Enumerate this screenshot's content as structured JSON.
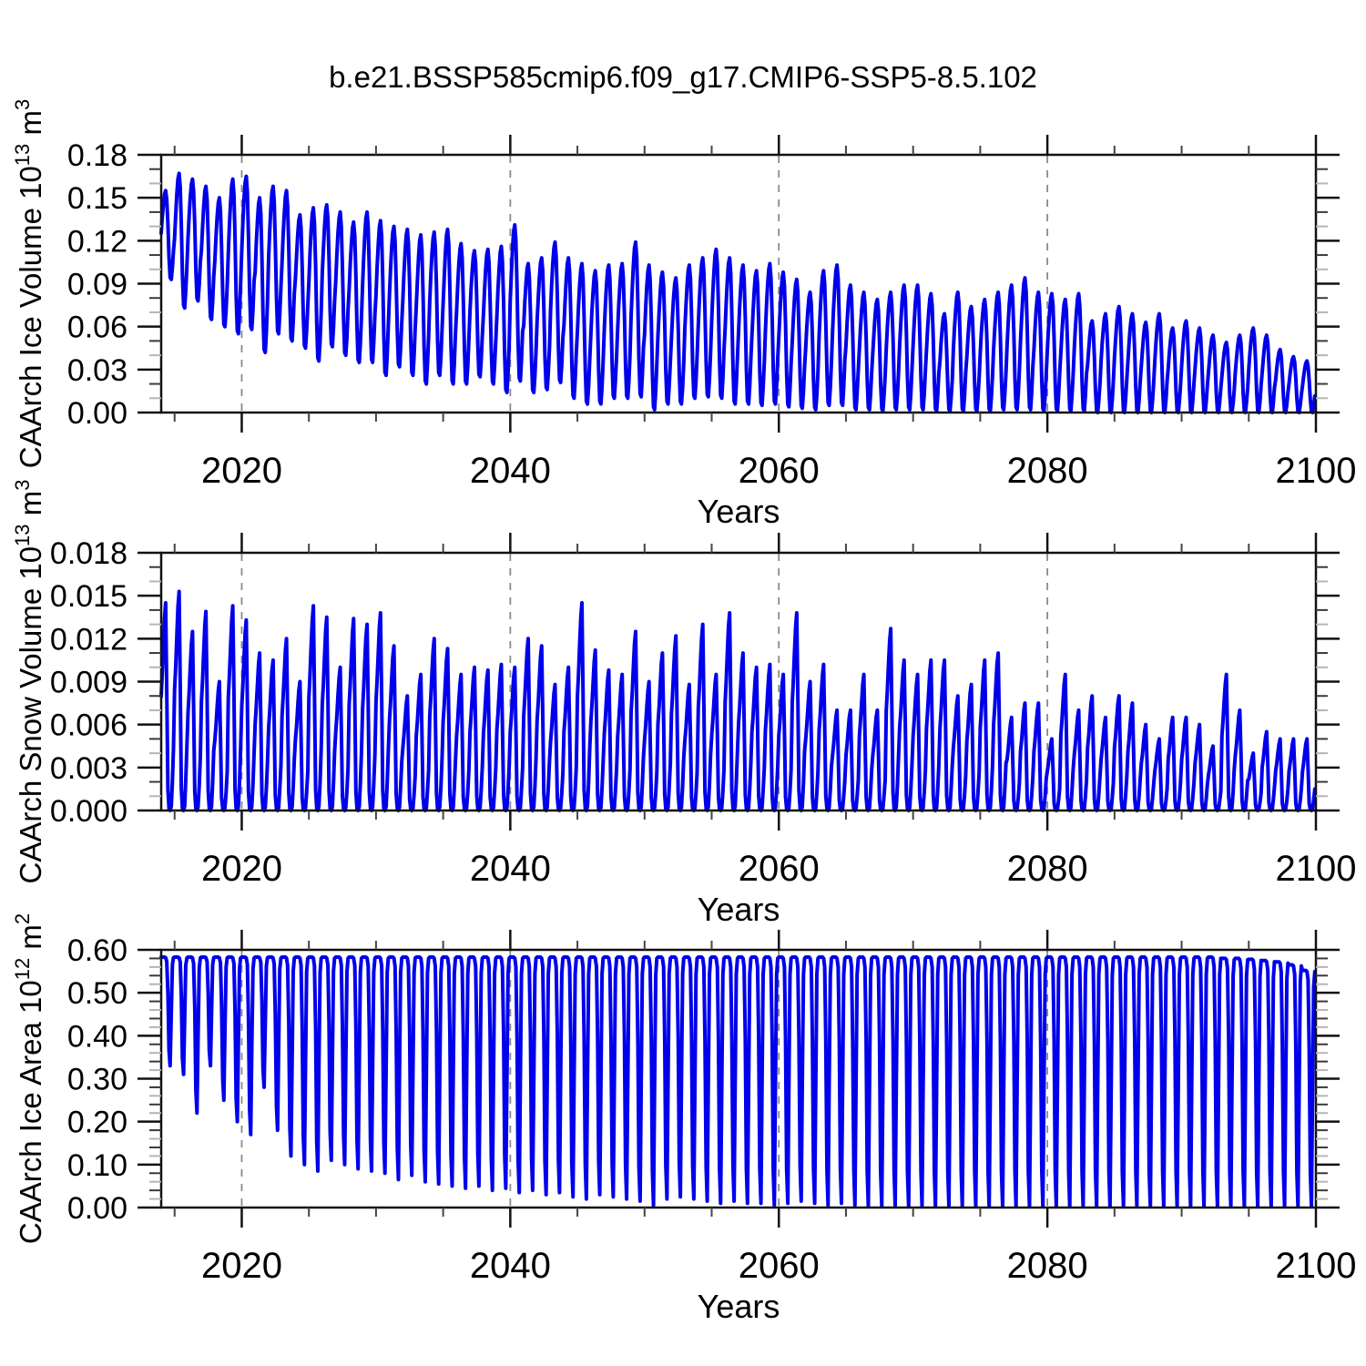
{
  "title": "b.e21.BSSP585cmip6.f09_g17.CMIP6-SSP5-8.5.102",
  "xlabel": "Years",
  "colors": {
    "line": "#0000EB",
    "frame": "#111111",
    "grid_dash": "#8a8a8a",
    "minor_tick_dark": "#3a3a3a",
    "minor_tick_light": "#b5b5b5",
    "x_minor_tick": "#444444",
    "text": "#000000"
  },
  "chart_data": [
    {
      "type": "line",
      "ylabel_parts": {
        "pre": "CAArch Ice Volume 10",
        "sup1": "13",
        "mid": " m",
        "sup2": "3"
      },
      "ylim": [
        0,
        0.18
      ],
      "ytick_values": [
        0,
        0.03,
        0.06,
        0.09,
        0.12,
        0.15,
        0.18
      ],
      "ytick_labels": [
        "0.00",
        "0.03",
        "0.06",
        "0.09",
        "0.12",
        "0.15",
        "0.18"
      ],
      "y_minor_step": 0.01,
      "xlim": [
        2014,
        2100
      ],
      "xtick_values": [
        2020,
        2040,
        2060,
        2080,
        2100
      ],
      "xtick_labels": [
        "2020",
        "2040",
        "2060",
        "2080",
        "2100"
      ],
      "x_minor_step": 5,
      "grid_years": [
        2020,
        2040,
        2060,
        2080
      ],
      "start_year": 2014,
      "mode": "envelope",
      "seasonal_shape": [
        0.52,
        0.7,
        0.85,
        0.96,
        1.0,
        0.9,
        0.62,
        0.25,
        0.02,
        0.0,
        0.13,
        0.32
      ],
      "annual_max": [
        0.155,
        0.167,
        0.163,
        0.158,
        0.15,
        0.163,
        0.165,
        0.15,
        0.158,
        0.155,
        0.138,
        0.143,
        0.145,
        0.14,
        0.133,
        0.14,
        0.134,
        0.13,
        0.128,
        0.124,
        0.126,
        0.128,
        0.118,
        0.113,
        0.114,
        0.116,
        0.131,
        0.104,
        0.108,
        0.119,
        0.108,
        0.104,
        0.099,
        0.103,
        0.104,
        0.119,
        0.103,
        0.098,
        0.094,
        0.103,
        0.108,
        0.114,
        0.108,
        0.103,
        0.099,
        0.104,
        0.098,
        0.093,
        0.084,
        0.099,
        0.103,
        0.089,
        0.084,
        0.079,
        0.084,
        0.089,
        0.089,
        0.083,
        0.069,
        0.084,
        0.074,
        0.079,
        0.084,
        0.089,
        0.094,
        0.084,
        0.083,
        0.079,
        0.083,
        0.064,
        0.069,
        0.074,
        0.069,
        0.063,
        0.069,
        0.059,
        0.064,
        0.059,
        0.054,
        0.049,
        0.054,
        0.059,
        0.054,
        0.044,
        0.039,
        0.036
      ],
      "annual_min": [
        0.093,
        0.073,
        0.078,
        0.065,
        0.06,
        0.055,
        0.058,
        0.042,
        0.055,
        0.05,
        0.045,
        0.036,
        0.046,
        0.04,
        0.035,
        0.035,
        0.026,
        0.032,
        0.026,
        0.02,
        0.026,
        0.02,
        0.02,
        0.025,
        0.02,
        0.014,
        0.022,
        0.014,
        0.016,
        0.021,
        0.01,
        0.006,
        0.006,
        0.01,
        0.01,
        0.011,
        0.002,
        0.006,
        0.006,
        0.01,
        0.011,
        0.01,
        0.006,
        0.006,
        0.005,
        0.006,
        0.004,
        0.003,
        0.002,
        0.005,
        0.005,
        0.002,
        0.002,
        0.001,
        0.002,
        0.002,
        0.002,
        0.001,
        0.001,
        0.001,
        0.001,
        0.001,
        0.002,
        0.002,
        0.002,
        0.001,
        0.001,
        0.001,
        0.001,
        0.0,
        0.0,
        0.0,
        0.0,
        0.0,
        0.0,
        0.0,
        0.0,
        0.0,
        0.0,
        0.0,
        0.0,
        0.0,
        0.0,
        0.0,
        0.0,
        0.0
      ]
    },
    {
      "type": "line",
      "ylabel_parts": {
        "pre": "CAArch Snow Volume 10",
        "sup1": "13",
        "mid": " m",
        "sup2": "3"
      },
      "ylim": [
        0,
        0.018
      ],
      "ytick_values": [
        0,
        0.003,
        0.006,
        0.009,
        0.012,
        0.015,
        0.018
      ],
      "ytick_labels": [
        "0.000",
        "0.003",
        "0.006",
        "0.009",
        "0.012",
        "0.015",
        "0.018"
      ],
      "y_minor_step": 0.001,
      "xlim": [
        2014,
        2100
      ],
      "xtick_values": [
        2020,
        2040,
        2060,
        2080,
        2100
      ],
      "xtick_labels": [
        "2020",
        "2040",
        "2060",
        "2080",
        "2100"
      ],
      "x_minor_step": 5,
      "grid_years": [
        2020,
        2040,
        2060,
        2080
      ],
      "start_year": 2014,
      "mode": "peak",
      "seasonal_shape": [
        0.55,
        0.66,
        0.8,
        0.93,
        1.0,
        0.58,
        0.1,
        0.01,
        0.0,
        0.02,
        0.14,
        0.3
      ],
      "annual_max": [
        0.0145,
        0.0153,
        0.0125,
        0.0139,
        0.009,
        0.0143,
        0.0133,
        0.011,
        0.0105,
        0.012,
        0.009,
        0.0143,
        0.0135,
        0.01,
        0.0134,
        0.013,
        0.0138,
        0.0115,
        0.008,
        0.0095,
        0.012,
        0.0113,
        0.0095,
        0.01,
        0.0098,
        0.0102,
        0.01,
        0.012,
        0.0115,
        0.0088,
        0.01,
        0.0145,
        0.0112,
        0.0098,
        0.0095,
        0.0125,
        0.009,
        0.011,
        0.0122,
        0.0088,
        0.013,
        0.0095,
        0.0138,
        0.011,
        0.01,
        0.0102,
        0.0095,
        0.0138,
        0.009,
        0.0102,
        0.007,
        0.007,
        0.0095,
        0.007,
        0.0127,
        0.0105,
        0.0095,
        0.0105,
        0.0105,
        0.008,
        0.0088,
        0.0105,
        0.011,
        0.0065,
        0.0075,
        0.0075,
        0.005,
        0.0095,
        0.007,
        0.008,
        0.0065,
        0.008,
        0.0075,
        0.006,
        0.005,
        0.0065,
        0.0065,
        0.006,
        0.0045,
        0.0095,
        0.007,
        0.004,
        0.0055,
        0.005,
        0.005,
        0.005
      ],
      "annual_min": [
        0,
        0,
        0,
        0,
        0,
        0,
        0,
        0,
        0,
        0,
        0,
        0,
        0,
        0,
        0,
        0,
        0,
        0,
        0,
        0,
        0,
        0,
        0,
        0,
        0,
        0,
        0,
        0,
        0,
        0,
        0,
        0,
        0,
        0,
        0,
        0,
        0,
        0,
        0,
        0,
        0,
        0,
        0,
        0,
        0,
        0,
        0,
        0,
        0,
        0,
        0,
        0,
        0,
        0,
        0,
        0,
        0,
        0,
        0,
        0,
        0,
        0,
        0,
        0,
        0,
        0,
        0,
        0,
        0,
        0,
        0,
        0,
        0,
        0,
        0,
        0,
        0,
        0,
        0,
        0,
        0,
        0,
        0,
        0,
        0,
        0
      ]
    },
    {
      "type": "line",
      "ylabel_parts": {
        "pre": "CAArch Ice Area 10",
        "sup1": "12",
        "mid": " m",
        "sup2": "2"
      },
      "ylim": [
        0,
        0.6
      ],
      "ytick_values": [
        0,
        0.1,
        0.2,
        0.3,
        0.4,
        0.5,
        0.6
      ],
      "ytick_labels": [
        "0.00",
        "0.10",
        "0.20",
        "0.30",
        "0.40",
        "0.50",
        "0.60"
      ],
      "y_minor_step": 0.02,
      "xlim": [
        2014,
        2100
      ],
      "xtick_values": [
        2020,
        2040,
        2060,
        2080,
        2100
      ],
      "xtick_labels": [
        "2020",
        "2040",
        "2060",
        "2080",
        "2100"
      ],
      "x_minor_step": 5,
      "grid_years": [
        2020,
        2040,
        2060,
        2080
      ],
      "start_year": 2014,
      "mode": "dip",
      "seasonal_shape": [
        0.0,
        0.0,
        0.0,
        0.0,
        0.005,
        0.04,
        0.33,
        0.86,
        1.0,
        0.52,
        0.07,
        0.005
      ],
      "annual_max": [
        0.583,
        0.583,
        0.583,
        0.583,
        0.583,
        0.583,
        0.583,
        0.583,
        0.583,
        0.583,
        0.583,
        0.583,
        0.583,
        0.583,
        0.583,
        0.583,
        0.583,
        0.583,
        0.583,
        0.583,
        0.583,
        0.583,
        0.583,
        0.583,
        0.583,
        0.583,
        0.583,
        0.583,
        0.583,
        0.583,
        0.583,
        0.583,
        0.583,
        0.583,
        0.583,
        0.583,
        0.583,
        0.583,
        0.583,
        0.583,
        0.583,
        0.583,
        0.583,
        0.583,
        0.583,
        0.583,
        0.583,
        0.583,
        0.583,
        0.583,
        0.583,
        0.583,
        0.583,
        0.583,
        0.583,
        0.583,
        0.583,
        0.583,
        0.583,
        0.583,
        0.583,
        0.583,
        0.583,
        0.583,
        0.583,
        0.583,
        0.583,
        0.583,
        0.583,
        0.583,
        0.583,
        0.583,
        0.583,
        0.583,
        0.583,
        0.583,
        0.583,
        0.583,
        0.583,
        0.58,
        0.58,
        0.578,
        0.575,
        0.572,
        0.565,
        0.552
      ],
      "annual_min": [
        0.33,
        0.31,
        0.22,
        0.33,
        0.25,
        0.2,
        0.17,
        0.28,
        0.18,
        0.12,
        0.1,
        0.085,
        0.11,
        0.1,
        0.09,
        0.085,
        0.08,
        0.065,
        0.075,
        0.06,
        0.055,
        0.05,
        0.045,
        0.05,
        0.04,
        0.045,
        0.035,
        0.04,
        0.03,
        0.035,
        0.025,
        0.02,
        0.03,
        0.025,
        0.02,
        0.015,
        0.005,
        0.02,
        0.025,
        0.02,
        0.015,
        0.01,
        0.015,
        0.01,
        0.01,
        0.005,
        0.01,
        0.015,
        0.01,
        0.005,
        0.01,
        0.005,
        0.002,
        0.002,
        0.005,
        0.002,
        0.002,
        0.002,
        0.002,
        0.002,
        0.002,
        0.002,
        0.002,
        0.002,
        0.002,
        0.002,
        0.002,
        0.002,
        0.002,
        0.002,
        0.002,
        0.002,
        0.002,
        0.002,
        0.002,
        0.002,
        0.002,
        0.002,
        0.002,
        0.002,
        0.002,
        0.002,
        0.002,
        0.002,
        0.002,
        0.002
      ]
    }
  ]
}
